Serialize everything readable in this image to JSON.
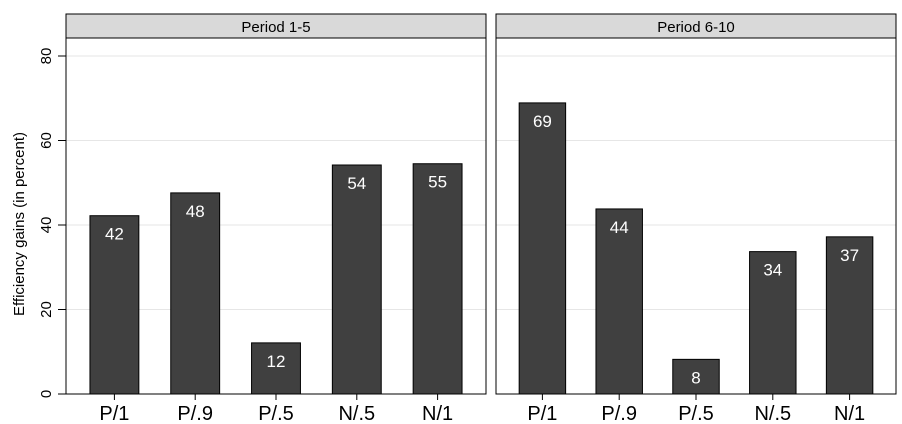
{
  "chart_data": {
    "type": "bar",
    "ylabel": "Efficiency gains (in percent)",
    "xlabel": "",
    "ylim": [
      0,
      80
    ],
    "yticks": [
      0,
      20,
      40,
      60,
      80
    ],
    "grid": true,
    "bar_color": "#404040",
    "panels": [
      {
        "title": "Period 1-5",
        "categories": [
          "P/1",
          "P/.9",
          "P/.5",
          "N/.5",
          "N/1"
        ],
        "values": [
          42.2,
          47.6,
          12.1,
          54.2,
          54.5
        ],
        "labels": [
          "42",
          "48",
          "12",
          "54",
          "55"
        ]
      },
      {
        "title": "Period 6-10",
        "categories": [
          "P/1",
          "P/.9",
          "P/.5",
          "N/.5",
          "N/1"
        ],
        "values": [
          68.9,
          43.8,
          8.2,
          33.7,
          37.2
        ],
        "labels": [
          "69",
          "44",
          "8",
          "34",
          "37"
        ]
      }
    ]
  }
}
